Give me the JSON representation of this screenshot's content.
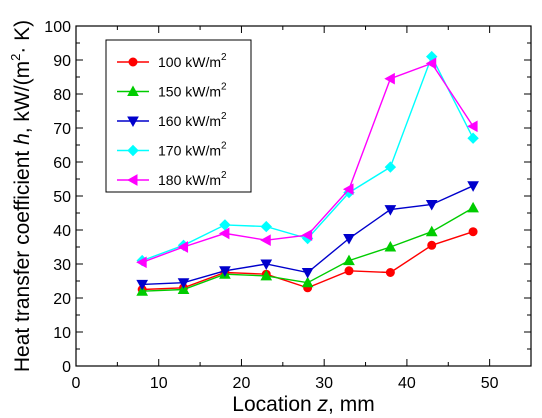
{
  "chart_data": {
    "type": "line",
    "xlabel": "Location z, mm",
    "ylabel": "Heat transfer coefficient h, kW/(m²· K)",
    "xlim": [
      0,
      55
    ],
    "ylim": [
      0,
      100
    ],
    "xticks": [
      0,
      10,
      20,
      30,
      40,
      50
    ],
    "yticks": [
      0,
      10,
      20,
      30,
      40,
      50,
      60,
      70,
      80,
      90,
      100
    ],
    "grid": false,
    "legend_position": "top-left",
    "x": [
      8,
      13,
      18,
      23,
      28,
      33,
      38,
      43,
      48
    ],
    "series": [
      {
        "name": "100 kW/m²",
        "color": "#ff0000",
        "marker": "circle",
        "values": [
          22.5,
          23,
          27.5,
          27,
          23,
          28,
          27.5,
          35.5,
          39.5
        ]
      },
      {
        "name": "150 kW/m²",
        "color": "#00cc00",
        "marker": "triangle-up",
        "values": [
          22,
          22.5,
          27,
          26.5,
          24.5,
          31,
          35,
          39.5,
          46.5
        ]
      },
      {
        "name": "160 kW/m²",
        "color": "#0000cc",
        "marker": "triangle-down",
        "values": [
          24,
          24.5,
          28,
          30,
          27.5,
          37.5,
          46,
          47.5,
          53
        ]
      },
      {
        "name": "170 kW/m²",
        "color": "#00ffff",
        "marker": "diamond",
        "values": [
          31,
          35.5,
          41.5,
          41,
          37.5,
          51,
          58.5,
          91,
          67
        ]
      },
      {
        "name": "180 kW/m²",
        "color": "#ff00ff",
        "marker": "triangle-left",
        "values": [
          30.5,
          35,
          39,
          37,
          38.5,
          52,
          84.5,
          89,
          70.5
        ]
      }
    ]
  }
}
